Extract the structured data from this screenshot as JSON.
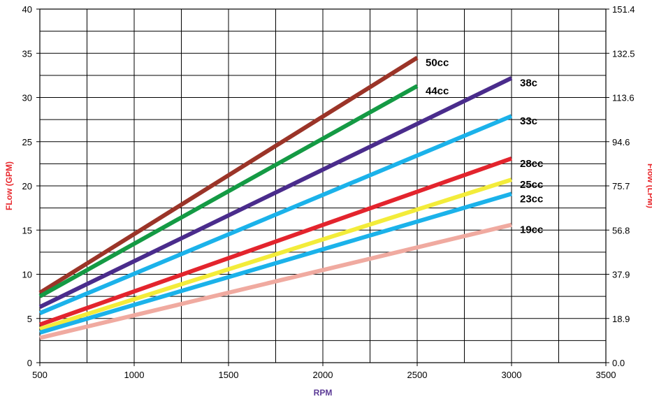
{
  "chart_data": {
    "type": "line",
    "title": "",
    "xlabel": "RPM",
    "ylabel": "FLow (GPM)",
    "y2label": "Flow (LPM)",
    "xlim": [
      500,
      3500
    ],
    "ylim": [
      0,
      40
    ],
    "grid": true,
    "legend": "inline labels at line ends",
    "colors": {
      "xlabel": "#5b3a96",
      "ylabel": "#e8292e",
      "y2label": "#e8292e"
    },
    "x_ticks": [
      "500",
      "1000",
      "1500",
      "2000",
      "2500",
      "3000",
      "3500"
    ],
    "y_ticks": [
      "0",
      "5",
      "10",
      "15",
      "20",
      "25",
      "30",
      "35",
      "40"
    ],
    "y2_ticks": [
      "0.0",
      "18.9",
      "37.9",
      "56.8",
      "75.7",
      "94.6",
      "113.6",
      "132.5",
      "151.4"
    ],
    "series": [
      {
        "name": "50cc",
        "x": [
          500,
          2500
        ],
        "values": [
          7.9,
          34.5
        ],
        "color": "#9b3428"
      },
      {
        "name": "44cc",
        "x": [
          500,
          2500
        ],
        "values": [
          7.5,
          31.3
        ],
        "color": "#149a44"
      },
      {
        "name": "38c",
        "x": [
          500,
          3000
        ],
        "values": [
          6.3,
          32.2
        ],
        "color": "#4a2c8c"
      },
      {
        "name": "33c",
        "x": [
          500,
          3000
        ],
        "values": [
          5.6,
          27.9
        ],
        "color": "#1bb2ea"
      },
      {
        "name": "28cc",
        "x": [
          500,
          3000
        ],
        "values": [
          4.3,
          23.1
        ],
        "color": "#e3242d"
      },
      {
        "name": "25cc",
        "x": [
          500,
          3000
        ],
        "values": [
          3.8,
          20.7
        ],
        "color": "#f3ec3a"
      },
      {
        "name": "23cc",
        "x": [
          500,
          3000
        ],
        "values": [
          3.4,
          19.1
        ],
        "color": "#1bb2ea"
      },
      {
        "name": "19cc",
        "x": [
          500,
          3000
        ],
        "values": [
          2.8,
          15.6
        ],
        "color": "#f0aaa0"
      }
    ]
  }
}
